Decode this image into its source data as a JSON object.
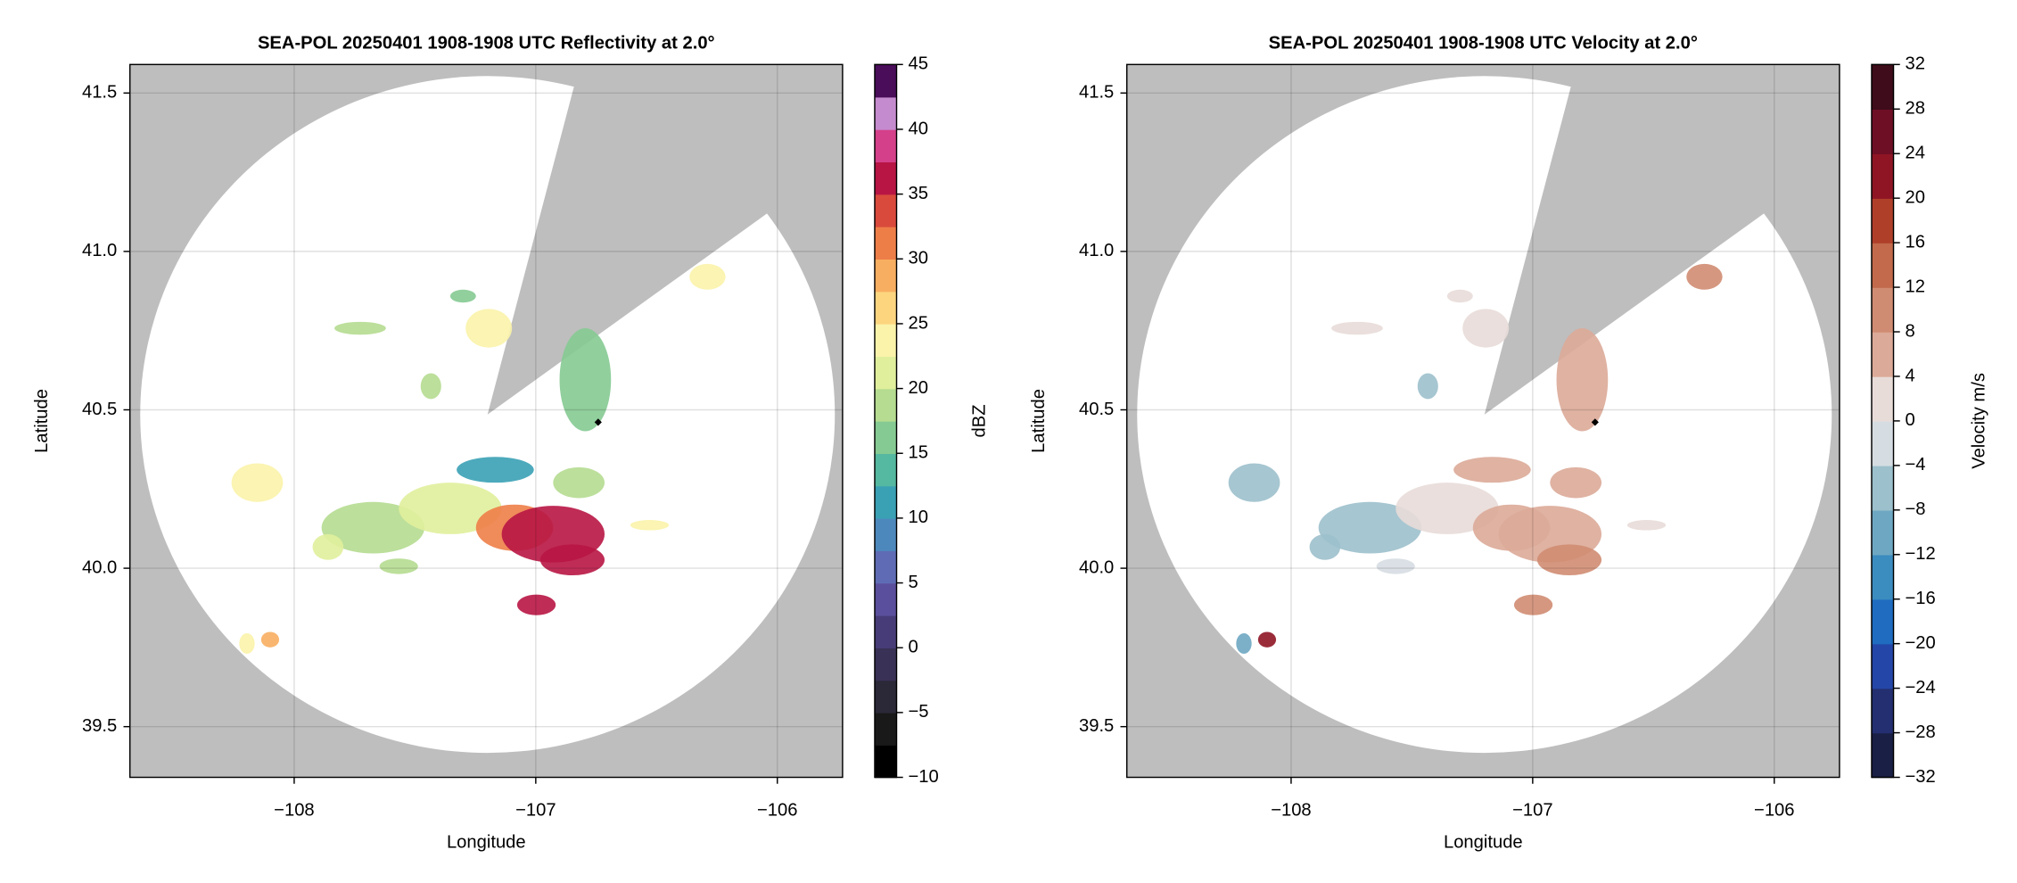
{
  "chart_data": [
    {
      "type": "radar",
      "title": "SEA-POL 20250401 1908-1908 UTC Reflectivity at 2.0°",
      "xlabel": "Longitude",
      "ylabel": "Latitude",
      "xlim": [
        -108.68,
        -105.73
      ],
      "ylim": [
        39.34,
        41.59
      ],
      "xticks": [
        {
          "value": -108,
          "label": "−108"
        },
        {
          "value": -107,
          "label": "−107"
        },
        {
          "value": -106,
          "label": "−106"
        }
      ],
      "yticks": [
        {
          "value": 39.5,
          "label": "39.5"
        },
        {
          "value": 40.0,
          "label": "40.0"
        },
        {
          "value": 40.5,
          "label": "40.5"
        },
        {
          "value": 41.0,
          "label": "41.0"
        },
        {
          "value": 41.5,
          "label": "41.5"
        }
      ],
      "grid": true,
      "colorbar": {
        "label": "dBZ",
        "lim": [
          -10,
          45
        ],
        "ticks": [
          {
            "value": -10,
            "label": "−10"
          },
          {
            "value": -5,
            "label": "−5"
          },
          0,
          5,
          10,
          15,
          20,
          25,
          30,
          35,
          40,
          45
        ],
        "colors": [
          "#000000",
          "#191919",
          "#2b2838",
          "#3a3156",
          "#483c78",
          "#5a4f9c",
          "#5f6cb5",
          "#4d88bd",
          "#3aa1b5",
          "#55b8a0",
          "#85ca92",
          "#b5dc90",
          "#e0ef9c",
          "#fbf3aa",
          "#fdd57f",
          "#f8ae60",
          "#ee7e48",
          "#d94a3c",
          "#b81544",
          "#d5408a",
          "#c58bcf",
          "#4a0d5a"
        ]
      }
    },
    {
      "type": "radar",
      "title": "SEA-POL 20250401 1908-1908 UTC Velocity at 2.0°",
      "xlabel": "Longitude",
      "ylabel": "Latitude",
      "xlim": [
        -108.68,
        -105.73
      ],
      "ylim": [
        39.34,
        41.59
      ],
      "xticks": [
        {
          "value": -108,
          "label": "−108"
        },
        {
          "value": -107,
          "label": "−107"
        },
        {
          "value": -106,
          "label": "−106"
        }
      ],
      "yticks": [
        {
          "value": 39.5,
          "label": "39.5"
        },
        {
          "value": 40.0,
          "label": "40.0"
        },
        {
          "value": 40.5,
          "label": "40.5"
        },
        {
          "value": 41.0,
          "label": "41.0"
        },
        {
          "value": 41.5,
          "label": "41.5"
        }
      ],
      "grid": true,
      "colorbar": {
        "label": "Velocity m/s",
        "lim": [
          -32,
          32
        ],
        "ticks": [
          {
            "value": -32,
            "label": "−32"
          },
          {
            "value": -28,
            "label": "−28"
          },
          {
            "value": -24,
            "label": "−24"
          },
          {
            "value": -20,
            "label": "−20"
          },
          {
            "value": -16,
            "label": "−16"
          },
          {
            "value": -12,
            "label": "−12"
          },
          {
            "value": -8,
            "label": "−8"
          },
          {
            "value": -4,
            "label": "−4"
          },
          0,
          4,
          8,
          12,
          16,
          20,
          24,
          28,
          32
        ],
        "colors": [
          "#1a1f45",
          "#232f70",
          "#2446a8",
          "#1f6cc0",
          "#3b8cbf",
          "#6ea7c2",
          "#9cc0cc",
          "#d6dde2",
          "#e8dcd8",
          "#dcaa98",
          "#d08c72",
          "#c26a4b",
          "#b03f2a",
          "#8f1525",
          "#6e0f25",
          "#3e0c1a"
        ]
      }
    }
  ]
}
